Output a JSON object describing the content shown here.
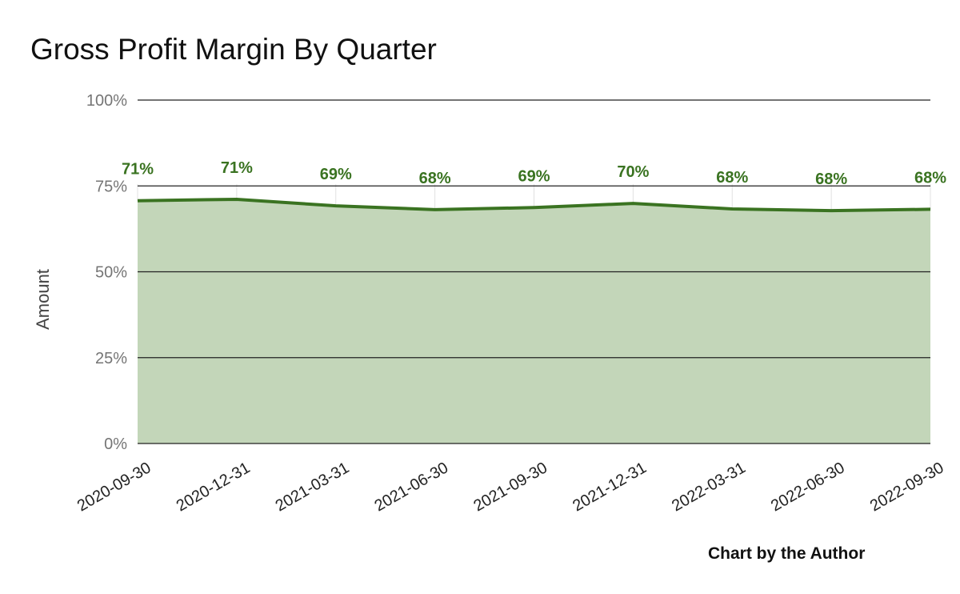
{
  "chart_data": {
    "type": "area",
    "title": "Gross Profit Margin By Quarter",
    "xlabel": "",
    "ylabel": "Amount",
    "categories": [
      "2020-09-30",
      "2020-12-31",
      "2021-03-31",
      "2021-06-30",
      "2021-09-30",
      "2021-12-31",
      "2022-03-31",
      "2022-06-30",
      "2022-09-30"
    ],
    "values": [
      70.7,
      71.1,
      69.2,
      68.1,
      68.7,
      69.9,
      68.3,
      67.8,
      68.2
    ],
    "data_labels": [
      "71%",
      "71%",
      "69%",
      "68%",
      "69%",
      "70%",
      "68%",
      "68%",
      "68%"
    ],
    "yticks": [
      0,
      25,
      50,
      75,
      100
    ],
    "ytick_labels": [
      "0%",
      "25%",
      "50%",
      "75%",
      "100%"
    ],
    "ylim": [
      0,
      100
    ],
    "grid": true,
    "legend": "none",
    "colors": {
      "line": "#3a7321",
      "fill": "#c3d6b9",
      "gridline": "#222222",
      "label": "#3a7321"
    }
  },
  "credit": "Chart by the Author"
}
